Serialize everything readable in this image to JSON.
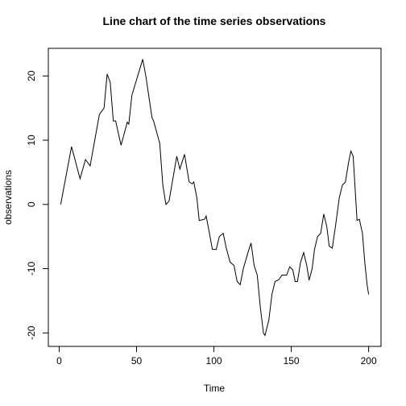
{
  "chart_data": {
    "type": "line",
    "title": "Line chart of the time series observations",
    "x_label": "Time",
    "y_label": "observations",
    "x": [
      1,
      8,
      13.5,
      17,
      20,
      26,
      29,
      31,
      33,
      35,
      36.5,
      40,
      44,
      45,
      47,
      54,
      56,
      60,
      61,
      65,
      67,
      69,
      71,
      73.5,
      76,
      78,
      81,
      84,
      86,
      87,
      89,
      90.5,
      94,
      95,
      97.5,
      99,
      101.5,
      103.5,
      106,
      108,
      110.5,
      113,
      115,
      117,
      119,
      122,
      124,
      126,
      128,
      130,
      132,
      133,
      135.5,
      137.5,
      139.5,
      142,
      144,
      147,
      149,
      151,
      152.5,
      154,
      156,
      158,
      160,
      161.5,
      163.5,
      165,
      167,
      169,
      171,
      173,
      174.5,
      176.5,
      178.5,
      181,
      183,
      185,
      187,
      188.5,
      190,
      192.5,
      194,
      196,
      197.5,
      199,
      200
    ],
    "series": [
      {
        "name": "observations",
        "color": "#000000",
        "values": [
          0,
          9,
          4,
          7,
          6,
          14,
          15,
          20.3,
          19,
          13,
          13,
          9.2,
          12.8,
          12.5,
          17,
          22.6,
          20,
          13.5,
          13,
          9.5,
          3,
          0,
          0.5,
          4,
          7.5,
          5.5,
          7.8,
          3.5,
          3.2,
          3.5,
          1,
          -2.5,
          -2.3,
          -1.8,
          -5,
          -7,
          -7,
          -5,
          -4.5,
          -6.8,
          -9,
          -9.5,
          -12,
          -12.5,
          -10,
          -7.5,
          -6,
          -9.5,
          -11,
          -16,
          -20,
          -20.4,
          -18,
          -14,
          -12,
          -11.7,
          -11,
          -11,
          -9.7,
          -10.2,
          -12,
          -12,
          -9,
          -7.5,
          -9.5,
          -11.8,
          -10,
          -7,
          -5,
          -4.5,
          -1.5,
          -3.5,
          -6.5,
          -6.8,
          -3.5,
          1,
          3,
          3.5,
          6.5,
          8.3,
          7.5,
          -2.5,
          -2.3,
          -4.5,
          -9,
          -12.5,
          -14
        ]
      }
    ],
    "xlim": [
      -7,
      208
    ],
    "xticks": [
      0,
      50,
      100,
      150,
      200
    ],
    "ylim": [
      -22.1,
      24.3
    ],
    "yticks": [
      -20,
      -10,
      0,
      10,
      20
    ]
  }
}
